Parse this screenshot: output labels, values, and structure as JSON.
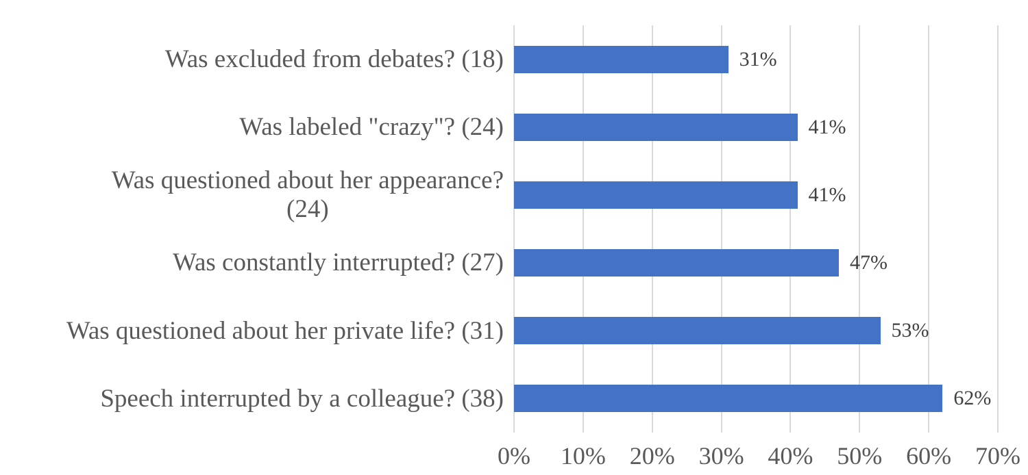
{
  "chart_data": {
    "type": "bar",
    "orientation": "horizontal",
    "title": "",
    "xlabel": "",
    "ylabel": "",
    "xlim": [
      0,
      70
    ],
    "grid": true,
    "legend": false,
    "legend_position": "none",
    "categories": [
      "Was excluded from debates? (18)",
      "Was labeled \"crazy\"? (24)",
      "Was questioned about her appearance?\n(24)",
      "Was constantly interrupted? (27)",
      "Was questioned about her private life? (31)",
      "Speech interrupted by a colleague? (38)"
    ],
    "values": [
      31,
      41,
      41,
      47,
      53,
      62
    ],
    "data_labels": [
      "31%",
      "41%",
      "41%",
      "47%",
      "53%",
      "62%"
    ],
    "x_tick_values": [
      0,
      10,
      20,
      30,
      40,
      50,
      60,
      70
    ],
    "x_tick_labels": [
      "0%",
      "10%",
      "20%",
      "30%",
      "40%",
      "50%",
      "60%",
      "70%"
    ]
  },
  "colors": {
    "bar": "#4472C4",
    "gridline": "#D9D9D9",
    "category_text": "#595959",
    "data_label_text": "#404040",
    "axis_text": "#595959",
    "background": "#FFFFFF"
  }
}
